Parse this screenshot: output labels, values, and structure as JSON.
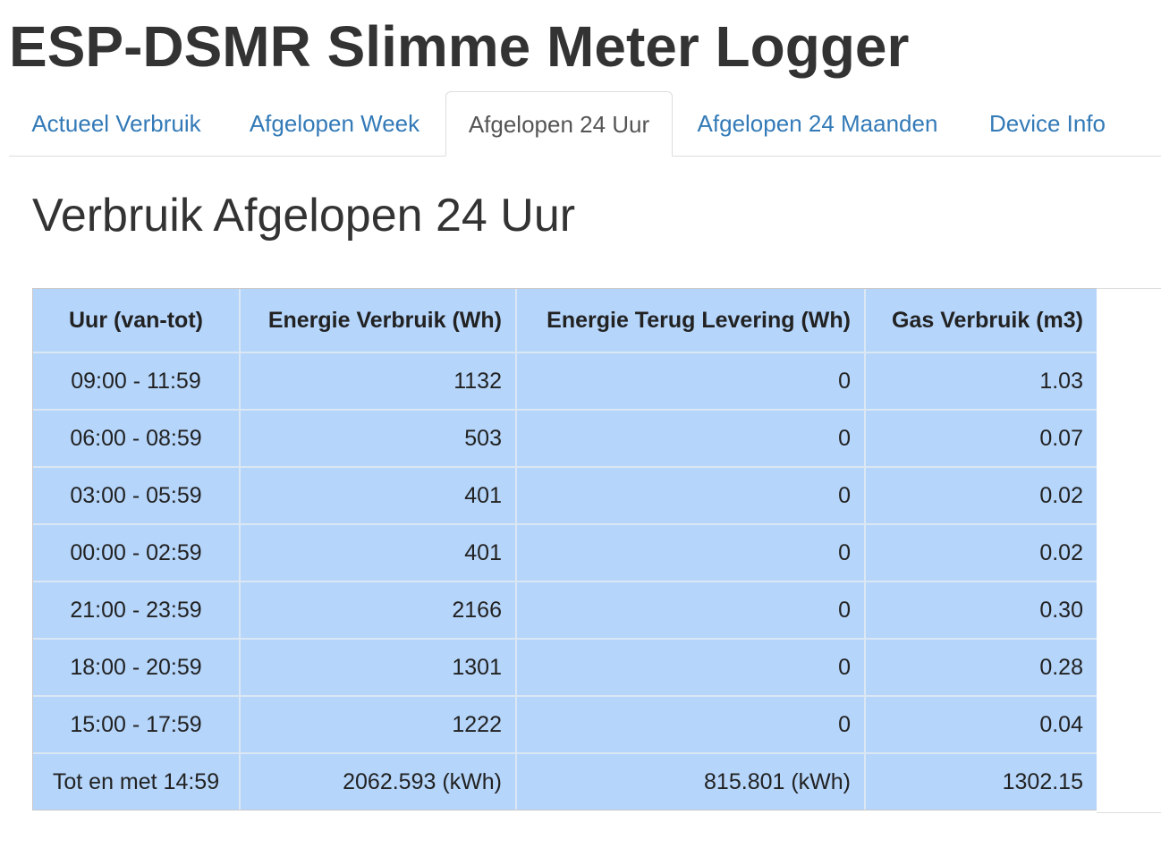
{
  "app": {
    "title": "ESP-DSMR Slimme Meter Logger"
  },
  "tabs": [
    {
      "label": "Actueel Verbruik",
      "active": false
    },
    {
      "label": "Afgelopen Week",
      "active": false
    },
    {
      "label": "Afgelopen 24 Uur",
      "active": true
    },
    {
      "label": "Afgelopen 24 Maanden",
      "active": false
    },
    {
      "label": "Device Info",
      "active": false
    }
  ],
  "main": {
    "title": "Verbruik Afgelopen 24 Uur"
  },
  "table": {
    "headers": [
      "Uur (van-tot)",
      "Energie Verbruik (Wh)",
      "Energie Terug Levering (Wh)",
      "Gas Verbruik (m3)"
    ],
    "rows": [
      [
        "09:00 - 11:59",
        "1132",
        "0",
        "1.03"
      ],
      [
        "06:00 - 08:59",
        "503",
        "0",
        "0.07"
      ],
      [
        "03:00 - 05:59",
        "401",
        "0",
        "0.02"
      ],
      [
        "00:00 - 02:59",
        "401",
        "0",
        "0.02"
      ],
      [
        "21:00 - 23:59",
        "2166",
        "0",
        "0.30"
      ],
      [
        "18:00 - 20:59",
        "1301",
        "0",
        "0.28"
      ],
      [
        "15:00 - 17:59",
        "1222",
        "0",
        "0.04"
      ],
      [
        "Tot en met 14:59",
        "2062.593 (kWh)",
        "815.801 (kWh)",
        "1302.15"
      ]
    ]
  },
  "colors": {
    "link": "#337ab7",
    "table_background": "#b5d5fb",
    "text": "#333333"
  }
}
